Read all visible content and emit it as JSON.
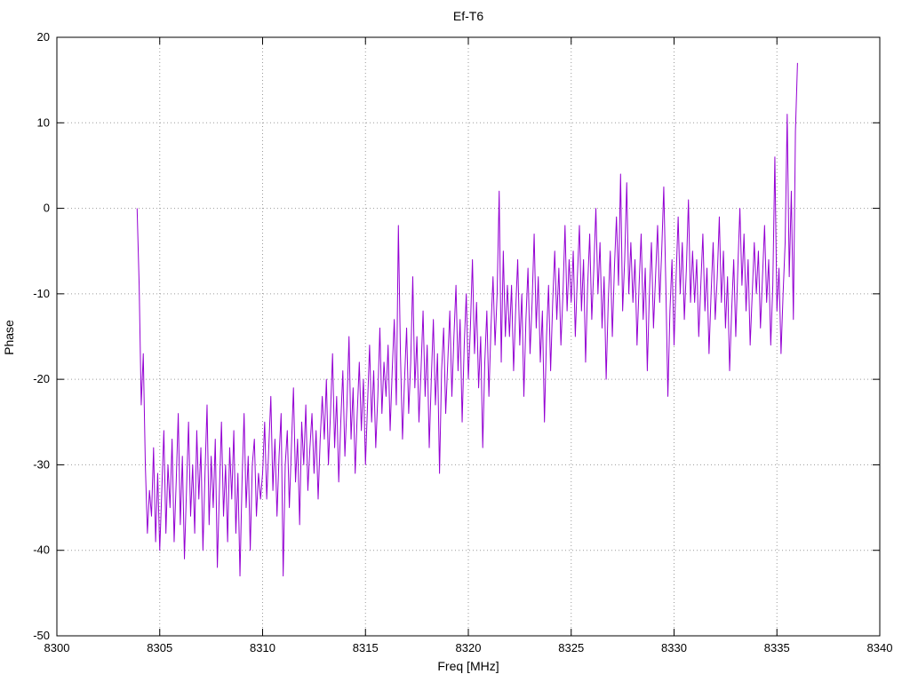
{
  "chart_data": {
    "type": "line",
    "title": "Ef-T6",
    "xlabel": "Freq [MHz]",
    "ylabel": "Phase",
    "xlim": [
      8300,
      8340
    ],
    "ylim": [
      -50,
      20
    ],
    "x_ticks": [
      8300,
      8305,
      8310,
      8315,
      8320,
      8325,
      8330,
      8335,
      8340
    ],
    "y_ticks": [
      -50,
      -40,
      -30,
      -20,
      -10,
      0,
      10,
      20
    ],
    "grid": true,
    "legend": "none",
    "line_color": "#9400d3",
    "grid_color": "#9a9a9a",
    "border_color": "#000000",
    "series": [
      {
        "name": "Ef-T6",
        "x_start": 8303.9,
        "x_step": 0.1,
        "y": [
          0,
          -9,
          -23,
          -17,
          -30,
          -38,
          -33,
          -36,
          -28,
          -39,
          -31,
          -40,
          -33,
          -26,
          -38,
          -30,
          -35,
          -27,
          -39,
          -32,
          -24,
          -37,
          -29,
          -41,
          -33,
          -25,
          -36,
          -30,
          -38,
          -26,
          -34,
          -28,
          -40,
          -31,
          -23,
          -37,
          -29,
          -35,
          -27,
          -42,
          -33,
          -25,
          -36,
          -30,
          -39,
          -28,
          -34,
          -26,
          -38,
          -31,
          -43,
          -32,
          -24,
          -35,
          -29,
          -40,
          -30,
          -27,
          -36,
          -31,
          -34,
          -31,
          -25,
          -34,
          -28,
          -22,
          -33,
          -27,
          -36,
          -29,
          -24,
          -43,
          -30,
          -26,
          -35,
          -28,
          -21,
          -32,
          -27,
          -37,
          -25,
          -30,
          -23,
          -33,
          -28,
          -24,
          -31,
          -26,
          -34,
          -27,
          -22,
          -27,
          -20,
          -30,
          -24,
          -17,
          -28,
          -22,
          -32,
          -25,
          -19,
          -29,
          -23,
          -15,
          -27,
          -21,
          -31,
          -24,
          -18,
          -26,
          -20,
          -30,
          -23,
          -16,
          -25,
          -19,
          -28,
          -22,
          -14,
          -24,
          -18,
          -22,
          -16,
          -26,
          -19,
          -13,
          -23,
          -2,
          -17,
          -27,
          -20,
          -14,
          -24,
          -18,
          -8,
          -21,
          -15,
          -25,
          -19,
          -12,
          -22,
          -16,
          -28,
          -20,
          -13,
          -23,
          -17,
          -31,
          -19,
          -14,
          -24,
          -18,
          -12,
          -22,
          -15,
          -9,
          -19,
          -13,
          -25,
          -16,
          -10,
          -20,
          -14,
          -6,
          -17,
          -11,
          -21,
          -15,
          -28,
          -18,
          -12,
          -22,
          -14,
          -8,
          -16,
          -10,
          2,
          -18,
          -5,
          -15,
          -9,
          -15,
          -9,
          -19,
          -12,
          -6,
          -16,
          -10,
          -22,
          -13,
          -7,
          -17,
          -11,
          -3,
          -14,
          -8,
          -18,
          -12,
          -25,
          -15,
          -9,
          -19,
          -11,
          -5,
          -13,
          -7,
          -16,
          -10,
          -2,
          -12,
          -6,
          -11,
          -5,
          -15,
          -8,
          -2,
          -12,
          -6,
          -18,
          -9,
          -3,
          -13,
          -7,
          0,
          -10,
          -4,
          -14,
          -8,
          -20,
          -11,
          -5,
          -15,
          -7,
          -1,
          -9,
          4,
          -12,
          -6,
          3,
          -10,
          -4,
          -11,
          -6,
          -16,
          -9,
          -3,
          -13,
          -7,
          -19,
          -10,
          -4,
          -14,
          -8,
          -2,
          -11,
          -5,
          2.5,
          -9,
          -22,
          -12,
          -6,
          -16,
          -8,
          -1,
          -10,
          -4,
          -13,
          -7,
          1,
          -11,
          -5,
          -11,
          -6,
          -15,
          -9,
          -3,
          -12,
          -7,
          -17,
          -10,
          -4,
          -13,
          -8,
          -1,
          -11,
          -5,
          -14,
          -8,
          -19,
          -12,
          -6,
          -15,
          -7,
          0,
          -9,
          -3,
          -12,
          -6,
          -16,
          -10,
          -4,
          -10,
          -5,
          -14,
          -8,
          -2,
          -11,
          -6,
          -16,
          -9,
          6,
          -12,
          -7,
          -17,
          -10,
          -4,
          11,
          -8,
          2,
          -13,
          9,
          17
        ]
      }
    ]
  }
}
